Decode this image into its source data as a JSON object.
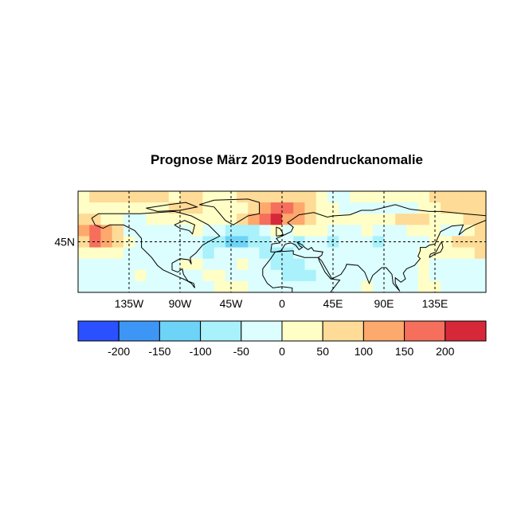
{
  "chart_data": {
    "type": "heatmap",
    "title": "Prognose März 2019 Bodendruckanomalie",
    "projection": "equirectangular",
    "lon_range": [
      -180,
      180
    ],
    "lat_range": [
      0,
      90
    ],
    "grid_lines": "dashed",
    "x_ticks": [
      "135W",
      "90W",
      "45W",
      "0",
      "45E",
      "90E",
      "135E"
    ],
    "x_tick_values": [
      -135,
      -90,
      -45,
      0,
      45,
      90,
      135
    ],
    "y_ticks": [
      "45N"
    ],
    "y_tick_values": [
      45
    ],
    "cell_size_deg": 10,
    "row_lat_centers": [
      85,
      75,
      65,
      55,
      45,
      35,
      25,
      15,
      5
    ],
    "col_lon_start": -175,
    "values": [
      [
        25,
        75,
        75,
        75,
        75,
        75,
        75,
        75,
        25,
        75,
        75,
        25,
        25,
        25,
        75,
        75,
        75,
        75,
        75,
        75,
        75,
        25,
        -25,
        -25,
        25,
        25,
        25,
        25,
        25,
        25,
        25,
        75,
        75,
        75,
        75,
        75
      ],
      [
        25,
        25,
        25,
        25,
        25,
        25,
        25,
        25,
        75,
        75,
        75,
        25,
        25,
        25,
        25,
        75,
        125,
        175,
        175,
        125,
        75,
        25,
        25,
        -25,
        -25,
        -25,
        -25,
        -25,
        -25,
        -25,
        25,
        25,
        75,
        75,
        75,
        75
      ],
      [
        75,
        75,
        25,
        25,
        -25,
        -25,
        25,
        25,
        25,
        25,
        25,
        25,
        25,
        25,
        75,
        125,
        175,
        225,
        125,
        125,
        75,
        25,
        25,
        25,
        25,
        25,
        25,
        25,
        75,
        75,
        75,
        25,
        25,
        25,
        75,
        75
      ],
      [
        125,
        175,
        125,
        75,
        -25,
        -25,
        -25,
        -25,
        -25,
        -25,
        25,
        -25,
        -25,
        -75,
        -75,
        -75,
        -25,
        25,
        -25,
        25,
        25,
        25,
        -25,
        -25,
        -25,
        25,
        -25,
        -25,
        -25,
        25,
        25,
        25,
        -25,
        -25,
        25,
        75
      ],
      [
        75,
        175,
        125,
        75,
        25,
        -25,
        -25,
        -25,
        -25,
        -25,
        -25,
        -75,
        -75,
        -125,
        -125,
        -75,
        -75,
        -25,
        -25,
        -75,
        -25,
        -25,
        -75,
        -25,
        -25,
        -25,
        -75,
        -25,
        -25,
        -25,
        -25,
        25,
        25,
        75,
        75,
        75
      ],
      [
        25,
        25,
        25,
        25,
        -25,
        -25,
        -25,
        -25,
        -25,
        -25,
        -25,
        -75,
        -25,
        -25,
        -25,
        -25,
        -75,
        -75,
        -75,
        -25,
        -25,
        -25,
        -25,
        -25,
        -25,
        -25,
        -25,
        -25,
        -25,
        -25,
        25,
        25,
        25,
        25,
        25,
        75
      ],
      [
        -25,
        -25,
        -25,
        -25,
        -25,
        -25,
        -25,
        -25,
        -25,
        25,
        25,
        -25,
        -25,
        -25,
        25,
        -25,
        -25,
        -75,
        -75,
        -75,
        -25,
        -25,
        -25,
        -25,
        -25,
        -25,
        -25,
        -25,
        -25,
        -25,
        25,
        -25,
        -25,
        -25,
        -25,
        -25
      ],
      [
        -25,
        -25,
        -25,
        -25,
        -25,
        25,
        -25,
        -25,
        -25,
        -25,
        -25,
        25,
        25,
        -25,
        -25,
        -25,
        -25,
        -25,
        -75,
        -75,
        -75,
        -25,
        -25,
        -25,
        -25,
        -25,
        -25,
        -25,
        -25,
        -25,
        25,
        -25,
        -25,
        -25,
        -25,
        -25
      ],
      [
        -25,
        -25,
        -25,
        -25,
        -25,
        -25,
        -25,
        -25,
        -25,
        -25,
        -25,
        -25,
        25,
        25,
        25,
        -25,
        -25,
        -25,
        -25,
        -25,
        -25,
        -25,
        -25,
        -25,
        -25,
        25,
        -25,
        -25,
        -25,
        -25,
        25,
        25,
        -25,
        -25,
        -25,
        -25
      ]
    ],
    "colorbar": {
      "boundaries": [
        -250,
        -200,
        -150,
        -100,
        -50,
        0,
        50,
        100,
        150,
        200,
        250
      ],
      "labels": [
        "-200",
        "-150",
        "-100",
        "-50",
        "0",
        "50",
        "100",
        "150",
        "200"
      ],
      "colors": [
        "#2a50ff",
        "#3d96f5",
        "#6dd3f7",
        "#a9f1fb",
        "#dcfefe",
        "#fefec6",
        "#fedb96",
        "#fda86c",
        "#f56f5c",
        "#d7283a"
      ]
    }
  }
}
